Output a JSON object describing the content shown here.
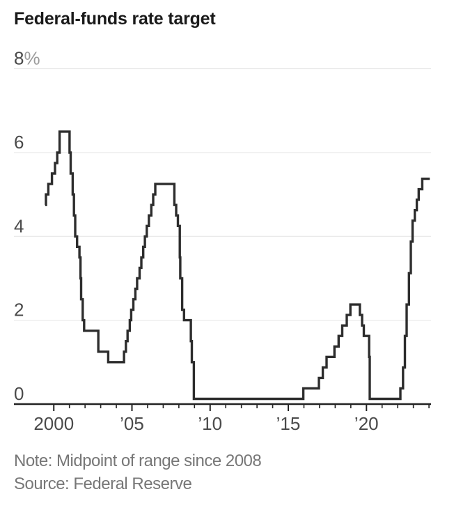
{
  "page": {
    "background": "#ffffff"
  },
  "title": "Federal-funds rate target",
  "note": "Note: Midpoint of range since 2008",
  "source": "Source: Federal Reserve",
  "chart_data": {
    "type": "line",
    "subtype": "step-after",
    "title": "Federal-funds rate target",
    "xlabel": "",
    "ylabel": "%",
    "legend": "none",
    "grid": "horizontal",
    "x_domain": [
      1997.45,
      2024.13
    ],
    "y_domain": [
      0,
      8
    ],
    "y_ticks": [
      {
        "value": 8,
        "label": "8",
        "suffix": "%"
      },
      {
        "value": 6,
        "label": "6"
      },
      {
        "value": 4,
        "label": "4"
      },
      {
        "value": 2,
        "label": "2"
      },
      {
        "value": 0,
        "label": "0"
      }
    ],
    "x_major_ticks": [
      {
        "year": 2000,
        "label": "2000"
      },
      {
        "year": 2005,
        "label": "’05"
      },
      {
        "year": 2010,
        "label": "’10"
      },
      {
        "year": 2015,
        "label": "’15"
      },
      {
        "year": 2020,
        "label": "’20"
      }
    ],
    "x_minor_tick_years": [
      2001,
      2002,
      2003,
      2004,
      2006,
      2007,
      2008,
      2009,
      2011,
      2012,
      2013,
      2014,
      2016,
      2017,
      2018,
      2019,
      2021,
      2022,
      2023,
      2024
    ],
    "line_color": "#2d2d2d",
    "grid_color": "#e4e4e4",
    "axis_color": "#222222",
    "label_color": "#4a4a4a",
    "suffix_color": "#9b9b9b",
    "series": [
      {
        "name": "Federal-funds rate target",
        "unit": "percent",
        "points": [
          [
            1999.45,
            4.75
          ],
          [
            1999.5,
            5.0
          ],
          [
            1999.65,
            5.25
          ],
          [
            1999.88,
            5.5
          ],
          [
            2000.08,
            5.75
          ],
          [
            2000.22,
            6.0
          ],
          [
            2000.37,
            6.5
          ],
          [
            2001.01,
            6.0
          ],
          [
            2001.08,
            5.5
          ],
          [
            2001.21,
            5.0
          ],
          [
            2001.29,
            4.5
          ],
          [
            2001.37,
            4.0
          ],
          [
            2001.49,
            3.75
          ],
          [
            2001.64,
            3.5
          ],
          [
            2001.71,
            3.0
          ],
          [
            2001.75,
            2.5
          ],
          [
            2001.85,
            2.0
          ],
          [
            2001.94,
            1.75
          ],
          [
            2002.85,
            1.25
          ],
          [
            2003.48,
            1.0
          ],
          [
            2004.49,
            1.25
          ],
          [
            2004.61,
            1.5
          ],
          [
            2004.72,
            1.75
          ],
          [
            2004.86,
            2.0
          ],
          [
            2004.95,
            2.25
          ],
          [
            2005.09,
            2.5
          ],
          [
            2005.22,
            2.75
          ],
          [
            2005.33,
            3.0
          ],
          [
            2005.49,
            3.25
          ],
          [
            2005.6,
            3.5
          ],
          [
            2005.72,
            3.75
          ],
          [
            2005.83,
            4.0
          ],
          [
            2005.95,
            4.25
          ],
          [
            2006.08,
            4.5
          ],
          [
            2006.24,
            4.75
          ],
          [
            2006.36,
            5.0
          ],
          [
            2006.49,
            5.25
          ],
          [
            2007.71,
            4.75
          ],
          [
            2007.83,
            4.5
          ],
          [
            2007.94,
            4.25
          ],
          [
            2008.06,
            3.5
          ],
          [
            2008.09,
            3.0
          ],
          [
            2008.21,
            2.25
          ],
          [
            2008.33,
            2.0
          ],
          [
            2008.77,
            1.5
          ],
          [
            2008.83,
            1.0
          ],
          [
            2008.96,
            0.125
          ],
          [
            2015.96,
            0.375
          ],
          [
            2016.96,
            0.625
          ],
          [
            2017.21,
            0.875
          ],
          [
            2017.45,
            1.125
          ],
          [
            2017.95,
            1.375
          ],
          [
            2018.22,
            1.625
          ],
          [
            2018.45,
            1.875
          ],
          [
            2018.74,
            2.125
          ],
          [
            2018.97,
            2.375
          ],
          [
            2019.58,
            2.125
          ],
          [
            2019.72,
            1.875
          ],
          [
            2019.83,
            1.625
          ],
          [
            2020.17,
            1.125
          ],
          [
            2020.21,
            0.125
          ],
          [
            2022.17,
            0.375
          ],
          [
            2022.34,
            0.875
          ],
          [
            2022.46,
            1.625
          ],
          [
            2022.57,
            2.375
          ],
          [
            2022.72,
            3.125
          ],
          [
            2022.84,
            3.875
          ],
          [
            2022.95,
            4.375
          ],
          [
            2023.09,
            4.625
          ],
          [
            2023.22,
            4.875
          ],
          [
            2023.34,
            5.125
          ],
          [
            2023.57,
            5.375
          ],
          [
            2024.05,
            5.375
          ]
        ]
      }
    ]
  }
}
